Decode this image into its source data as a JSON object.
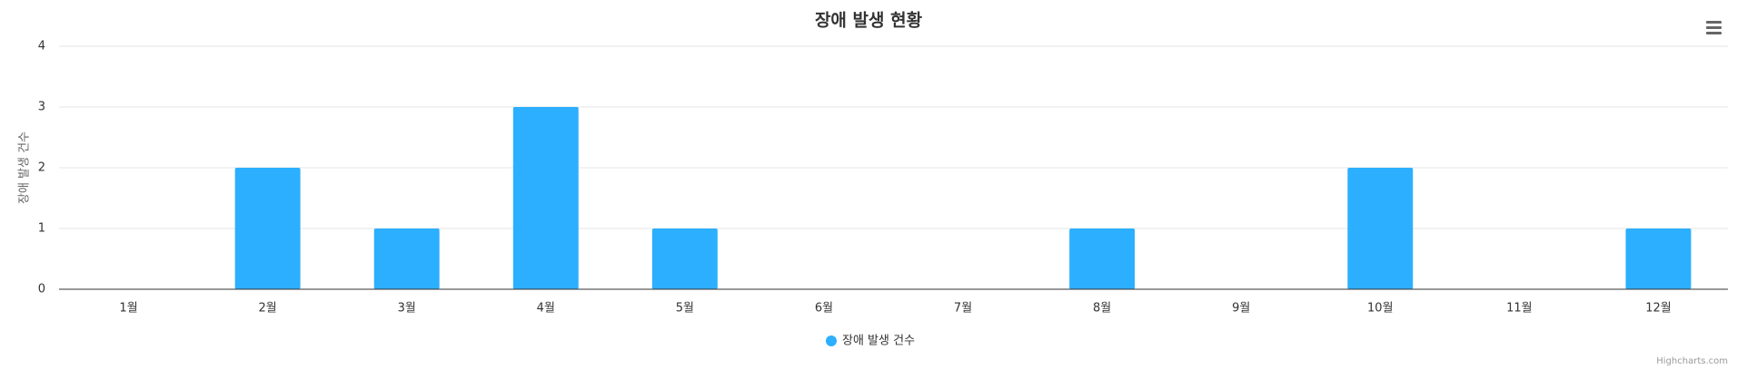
{
  "chart_data": {
    "type": "bar",
    "title": "장애 발생 현황",
    "y_axis_title": "장애 발생 건수",
    "categories": [
      "1월",
      "2월",
      "3월",
      "4월",
      "5월",
      "6월",
      "7월",
      "8월",
      "9월",
      "10월",
      "11월",
      "12월"
    ],
    "series": [
      {
        "name": "장애 발생 건수",
        "color": "#2caffe",
        "values": [
          0,
          2,
          1,
          3,
          1,
          0,
          0,
          1,
          0,
          2,
          0,
          1
        ]
      }
    ],
    "ylim": [
      0,
      4
    ],
    "yticks": [
      0,
      1,
      2,
      3,
      4
    ],
    "grid": true,
    "legend": "bottom",
    "credits": "Highcharts.com"
  }
}
